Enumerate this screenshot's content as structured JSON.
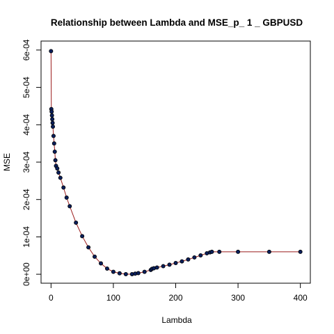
{
  "chart_data": {
    "type": "scatter",
    "title": "Relationship between Lambda and MSE_p_ 1 _ GBPUSD",
    "xlabel": "Lambda",
    "ylabel": "MSE",
    "xlim": [
      -16,
      416
    ],
    "ylim": [
      -2.4e-05,
      0.000624
    ],
    "x_ticks": [
      0,
      100,
      200,
      300,
      400
    ],
    "x_tick_labels": [
      "0",
      "100",
      "200",
      "300",
      "400"
    ],
    "y_ticks": [
      0,
      0.0001,
      0.0002,
      0.0003,
      0.0004,
      0.0005,
      0.0006
    ],
    "y_tick_labels": [
      "0e+00",
      "1e-04",
      "2e-04",
      "3e-04",
      "4e-04",
      "5e-04",
      "6e-04"
    ],
    "grid": false,
    "legend": "none",
    "marker": "filled-circle",
    "connected": true,
    "point_color": "#000000",
    "point_fill": "#0a1f5c",
    "line_color": "#9b1b1b",
    "series": [
      {
        "x": [
          0,
          0.5,
          1,
          1.5,
          2,
          2.5,
          3,
          4,
          5,
          6,
          7,
          8,
          10,
          12,
          15,
          20,
          25,
          30,
          40,
          50,
          60,
          70,
          80,
          90,
          100,
          110,
          120,
          130,
          135,
          140,
          150,
          160,
          162,
          165,
          170,
          180,
          190,
          200,
          210,
          220,
          230,
          240,
          250,
          255,
          258,
          270,
          300,
          350,
          400
        ],
        "y": [
          0.000597,
          0.000442,
          0.000435,
          0.000425,
          0.000415,
          0.000405,
          0.000395,
          0.00037,
          0.00035,
          0.000328,
          0.000305,
          0.00029,
          0.000283,
          0.000272,
          0.000258,
          0.000232,
          0.000205,
          0.000182,
          0.000138,
          0.000102,
          7.2e-05,
          4.7e-05,
          2.9e-05,
          1.5e-05,
          6.5e-06,
          2.5e-06,
          2e-07,
          3e-07,
          1.5e-06,
          3e-06,
          6.5e-06,
          1.15e-05,
          1.45e-05,
          1.6e-05,
          1.8e-05,
          2.15e-05,
          2.55e-05,
          3e-05,
          3.45e-05,
          3.95e-05,
          4.5e-05,
          5.05e-05,
          5.6e-05,
          5.85e-05,
          6e-05,
          6e-05,
          6e-05,
          6e-05,
          6e-05
        ]
      }
    ]
  }
}
